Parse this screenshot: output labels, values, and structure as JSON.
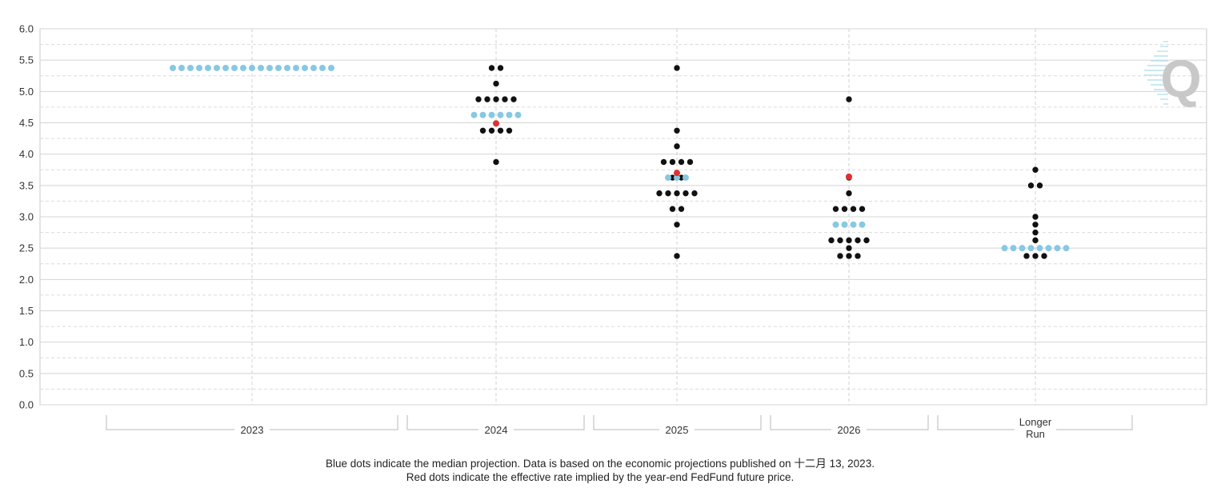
{
  "chart_data": {
    "type": "scatter",
    "subtype": "dot-plot",
    "ylim": [
      0,
      6
    ],
    "yticks": [
      "0.0",
      "0.5",
      "1.0",
      "1.5",
      "2.0",
      "2.5",
      "3.0",
      "3.5",
      "4.0",
      "4.5",
      "5.0",
      "5.5",
      "6.0"
    ],
    "grid": true,
    "categories": [
      {
        "label": "2023"
      },
      {
        "label": "2024"
      },
      {
        "label": "2025"
      },
      {
        "label": "2026"
      },
      {
        "label_lines": [
          "Longer",
          "Run"
        ]
      }
    ],
    "colors": {
      "participant": "#111111",
      "median": "#87c8e3",
      "implied": "#e03030"
    },
    "series": [
      {
        "values": [
          [],
          [
            [
              5.375,
              2
            ],
            [
              5.125,
              1
            ],
            [
              4.875,
              5
            ],
            [
              4.375,
              4
            ],
            [
              3.875,
              1
            ]
          ],
          [
            [
              5.375,
              1
            ],
            [
              4.375,
              1
            ],
            [
              4.125,
              1
            ],
            [
              3.875,
              4
            ],
            [
              3.625,
              2
            ],
            [
              3.375,
              5
            ],
            [
              3.125,
              2
            ],
            [
              2.875,
              1
            ],
            [
              2.375,
              1
            ]
          ],
          [
            [
              4.875,
              1
            ],
            [
              3.625,
              1
            ],
            [
              3.375,
              1
            ],
            [
              3.125,
              4
            ],
            [
              2.625,
              5
            ],
            [
              2.5,
              1
            ],
            [
              2.375,
              3
            ]
          ],
          [
            [
              3.75,
              1
            ],
            [
              3.5,
              2
            ],
            [
              3.0,
              1
            ],
            [
              2.875,
              1
            ],
            [
              2.75,
              1
            ],
            [
              2.625,
              1
            ],
            [
              2.375,
              3
            ]
          ]
        ]
      },
      {
        "values": [
          [
            [
              5.375,
              19
            ]
          ],
          [
            [
              4.625,
              6
            ]
          ],
          [
            [
              3.625,
              3
            ]
          ],
          [
            [
              2.875,
              4
            ]
          ],
          [
            [
              2.5,
              8
            ]
          ]
        ]
      },
      {
        "values": [
          [],
          [
            [
              4.49,
              1
            ]
          ],
          [
            [
              3.7,
              1
            ]
          ],
          [
            [
              3.64,
              1
            ]
          ],
          []
        ]
      }
    ]
  },
  "caption": {
    "line1": "Blue dots indicate the median projection. Data is based on the economic projections published on 十二月 13, 2023.",
    "line2": "Red dots indicate the effective rate implied by the year-end FedFund future price."
  },
  "logo": {
    "letter": "Q",
    "color": "#c8c8c8",
    "accent": "#b9e1ee"
  }
}
